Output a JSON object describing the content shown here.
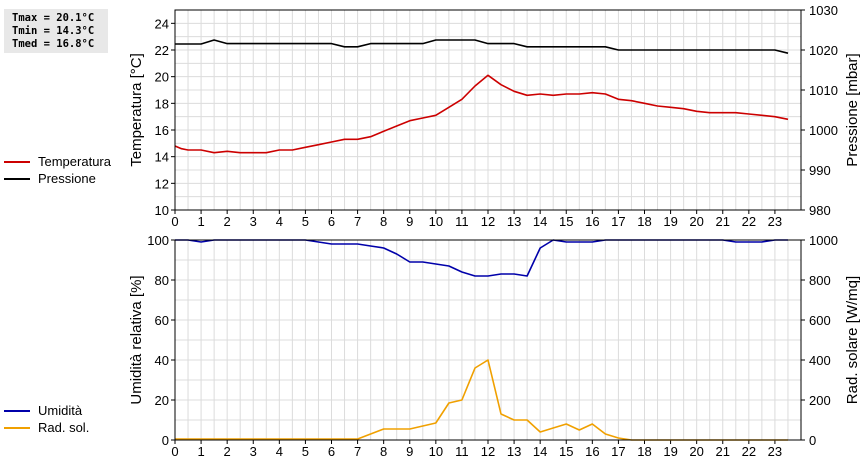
{
  "stats": {
    "tmax": "Tmax = 20.1°C",
    "tmin": "Tmin = 14.3°C",
    "tmed": "Tmed = 16.8°C"
  },
  "legend_top": [
    {
      "label": "Temperatura",
      "color": "#cc0000"
    },
    {
      "label": "Pressione",
      "color": "#000000"
    }
  ],
  "legend_bottom": [
    {
      "label": "Umidità",
      "color": "#0000aa"
    },
    {
      "label": "Rad. sol.",
      "color": "#f0a000"
    }
  ],
  "chart_data": [
    {
      "type": "line",
      "xlabel": "",
      "ylabel": "Temperatura [°C]",
      "y2label": "Pressione [mbar]",
      "xlim": [
        0,
        24
      ],
      "ylim": [
        10,
        25
      ],
      "y2lim": [
        980,
        1030
      ],
      "xticks": [
        "0",
        "1",
        "2",
        "3",
        "4",
        "5",
        "6",
        "7",
        "8",
        "9",
        "10",
        "11",
        "12",
        "13",
        "14",
        "15",
        "16",
        "17",
        "18",
        "19",
        "20",
        "21",
        "22",
        "23"
      ],
      "yticks": [
        10,
        12,
        14,
        16,
        18,
        20,
        22,
        24
      ],
      "y2ticks": [
        980,
        990,
        1000,
        1010,
        1020,
        1030
      ],
      "grid": true,
      "series": [
        {
          "name": "Temperatura",
          "axis": "left",
          "color": "#cc0000",
          "x": [
            0,
            0.25,
            0.5,
            1,
            1.5,
            2,
            2.5,
            3,
            3.5,
            4,
            4.5,
            5,
            5.5,
            6,
            6.5,
            7,
            7.5,
            8,
            8.5,
            9,
            9.5,
            10,
            10.5,
            11,
            11.5,
            12,
            12.5,
            13,
            13.5,
            14,
            14.5,
            15,
            15.5,
            16,
            16.5,
            17,
            17.5,
            18,
            18.5,
            19,
            19.5,
            20,
            20.5,
            21,
            21.5,
            22,
            22.5,
            23,
            23.5
          ],
          "y": [
            14.8,
            14.6,
            14.5,
            14.5,
            14.3,
            14.4,
            14.3,
            14.3,
            14.3,
            14.5,
            14.5,
            14.7,
            14.9,
            15.1,
            15.3,
            15.3,
            15.5,
            15.9,
            16.3,
            16.7,
            16.9,
            17.1,
            17.7,
            18.3,
            19.3,
            20.1,
            19.4,
            18.9,
            18.6,
            18.7,
            18.6,
            18.7,
            18.7,
            18.8,
            18.7,
            18.3,
            18.2,
            18.0,
            17.8,
            17.7,
            17.6,
            17.4,
            17.3,
            17.3,
            17.3,
            17.2,
            17.1,
            17.0,
            16.8
          ]
        },
        {
          "name": "Pressione",
          "axis": "right",
          "color": "#000000",
          "x": [
            0,
            1,
            1.5,
            2,
            2.5,
            3,
            4,
            5,
            6,
            6.5,
            7,
            7.5,
            8,
            9,
            9.5,
            10,
            10.5,
            11,
            11.5,
            12,
            12.5,
            13,
            13.5,
            14,
            15,
            16,
            16.5,
            17,
            18,
            19,
            20,
            21,
            22,
            23,
            23.5
          ],
          "y": [
            1021.5,
            1021.5,
            1022.5,
            1021.6,
            1021.6,
            1021.6,
            1021.6,
            1021.6,
            1021.6,
            1020.8,
            1020.8,
            1021.6,
            1021.6,
            1021.6,
            1021.6,
            1022.5,
            1022.5,
            1022.5,
            1022.5,
            1021.6,
            1021.6,
            1021.6,
            1020.8,
            1020.8,
            1020.8,
            1020.8,
            1020.8,
            1020.0,
            1020.0,
            1020.0,
            1020.0,
            1020.0,
            1020.0,
            1020.0,
            1019.2
          ]
        }
      ]
    },
    {
      "type": "line",
      "xlabel": "",
      "ylabel": "Umidità relativa [%]",
      "y2label": "Rad. solare [W/mq]",
      "xlim": [
        0,
        24
      ],
      "ylim": [
        0,
        100
      ],
      "y2lim": [
        0,
        1000
      ],
      "xticks": [
        "0",
        "1",
        "2",
        "3",
        "4",
        "5",
        "6",
        "7",
        "8",
        "9",
        "10",
        "11",
        "12",
        "13",
        "14",
        "15",
        "16",
        "17",
        "18",
        "19",
        "20",
        "21",
        "22",
        "23"
      ],
      "yticks": [
        0,
        20,
        40,
        60,
        80,
        100
      ],
      "y2ticks": [
        0,
        200,
        400,
        600,
        800,
        1000
      ],
      "grid": true,
      "series": [
        {
          "name": "Umidità",
          "axis": "left",
          "color": "#0000aa",
          "x": [
            0,
            0.5,
            1,
            1.5,
            2,
            3,
            4,
            5,
            5.5,
            6,
            7,
            7.5,
            8,
            8.5,
            9,
            9.5,
            10,
            10.5,
            11,
            11.5,
            12,
            12.5,
            13,
            13.5,
            14,
            14.5,
            15,
            15.5,
            16,
            16.5,
            17,
            18,
            19,
            20,
            21,
            21.5,
            22,
            22.5,
            23,
            23.5
          ],
          "y": [
            100,
            100,
            99,
            100,
            100,
            100,
            100,
            100,
            99,
            98,
            98,
            97,
            96,
            93,
            89,
            89,
            88,
            87,
            84,
            82,
            82,
            83,
            83,
            82,
            96,
            100,
            99,
            99,
            99,
            100,
            100,
            100,
            100,
            100,
            100,
            99,
            99,
            99,
            100,
            100
          ]
        },
        {
          "name": "Rad. sol.",
          "axis": "right",
          "color": "#f0a000",
          "x": [
            0,
            1,
            2,
            3,
            4,
            5,
            6,
            7,
            7.5,
            8,
            8.5,
            9,
            9.5,
            10,
            10.5,
            11,
            11.5,
            12,
            12.5,
            13,
            13.5,
            14,
            14.5,
            15,
            15.5,
            16,
            16.5,
            17,
            17.5,
            18,
            19,
            20,
            21,
            22,
            23,
            23.5
          ],
          "y": [
            5,
            5,
            5,
            5,
            5,
            5,
            5,
            5,
            30,
            55,
            55,
            55,
            70,
            85,
            185,
            200,
            360,
            400,
            130,
            100,
            100,
            40,
            60,
            80,
            50,
            80,
            30,
            10,
            0,
            0,
            0,
            0,
            0,
            0,
            0,
            0
          ]
        }
      ]
    }
  ]
}
